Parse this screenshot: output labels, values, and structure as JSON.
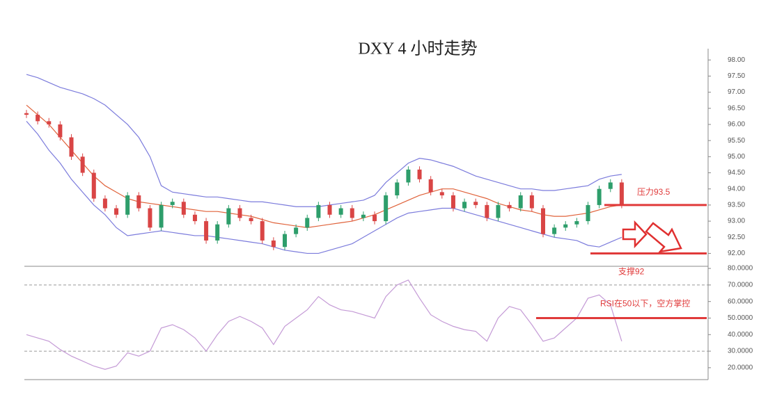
{
  "chart_data": [
    {
      "type": "candlestick",
      "title": "DXY 4 小时走势",
      "up_color": "#2e9e6b",
      "down_color": "#d94545",
      "open": [
        96.35,
        96.3,
        96.1,
        96.0,
        95.6,
        95.0,
        94.5,
        93.7,
        93.4,
        93.2,
        93.8,
        93.4,
        92.8,
        93.5,
        93.6,
        93.2,
        93.0,
        92.4,
        92.9,
        93.4,
        93.1,
        93.0,
        92.4,
        92.2,
        92.6,
        92.8,
        93.1,
        93.5,
        93.2,
        93.4,
        93.1,
        93.2,
        93.0,
        93.8,
        94.2,
        94.6,
        94.3,
        93.9,
        93.8,
        93.4,
        93.6,
        93.5,
        93.1,
        93.5,
        93.4,
        93.8,
        93.4,
        92.6,
        92.8,
        92.9,
        93.0,
        93.5,
        94.0,
        94.2
      ],
      "close": [
        96.3,
        96.1,
        96.0,
        95.6,
        95.0,
        94.5,
        93.7,
        93.4,
        93.2,
        93.8,
        93.4,
        92.8,
        93.5,
        93.6,
        93.2,
        93.0,
        92.4,
        92.9,
        93.4,
        93.1,
        93.0,
        92.4,
        92.2,
        92.6,
        92.8,
        93.1,
        93.5,
        93.2,
        93.4,
        93.1,
        93.2,
        93.0,
        93.8,
        94.2,
        94.6,
        94.3,
        93.9,
        93.8,
        93.4,
        93.6,
        93.5,
        93.1,
        93.5,
        93.4,
        93.8,
        93.4,
        92.6,
        92.8,
        92.9,
        93.0,
        93.5,
        94.0,
        94.2,
        93.5
      ],
      "high": [
        96.45,
        96.4,
        96.2,
        96.1,
        95.7,
        95.1,
        94.6,
        93.8,
        93.5,
        93.9,
        93.9,
        93.5,
        93.6,
        93.7,
        93.7,
        93.3,
        93.1,
        93.0,
        93.5,
        93.5,
        93.2,
        93.1,
        92.5,
        92.7,
        92.9,
        93.2,
        93.6,
        93.6,
        93.5,
        93.5,
        93.3,
        93.3,
        93.9,
        94.3,
        94.7,
        94.7,
        94.4,
        94.0,
        93.9,
        93.7,
        93.7,
        93.6,
        93.6,
        93.6,
        93.9,
        93.9,
        93.5,
        92.9,
        93.0,
        93.1,
        93.6,
        94.1,
        94.3,
        94.3
      ],
      "low": [
        96.2,
        96.0,
        95.9,
        95.5,
        94.9,
        94.4,
        93.6,
        93.3,
        93.1,
        93.1,
        93.3,
        92.7,
        92.7,
        93.4,
        93.1,
        92.9,
        92.3,
        92.3,
        92.8,
        93.0,
        92.9,
        92.3,
        92.1,
        92.1,
        92.5,
        92.7,
        93.0,
        93.1,
        93.1,
        93.0,
        93.0,
        92.9,
        92.9,
        93.7,
        94.1,
        94.2,
        93.8,
        93.7,
        93.3,
        93.3,
        93.4,
        93.0,
        93.0,
        93.3,
        93.3,
        93.3,
        92.5,
        92.5,
        92.7,
        92.8,
        92.9,
        93.4,
        93.9,
        93.4
      ],
      "series": [
        {
          "name": "upper",
          "color": "#7b7bdc",
          "values": [
            97.55,
            97.45,
            97.3,
            97.15,
            97.05,
            96.95,
            96.8,
            96.6,
            96.3,
            96.0,
            95.6,
            95.0,
            94.1,
            93.9,
            93.85,
            93.8,
            93.75,
            93.75,
            93.7,
            93.65,
            93.6,
            93.6,
            93.55,
            93.5,
            93.45,
            93.45,
            93.45,
            93.5,
            93.55,
            93.6,
            93.65,
            93.8,
            94.2,
            94.5,
            94.8,
            94.95,
            94.9,
            94.8,
            94.7,
            94.55,
            94.4,
            94.3,
            94.2,
            94.1,
            94.0,
            94.0,
            93.95,
            93.95,
            94.0,
            94.05,
            94.1,
            94.3,
            94.4,
            94.45
          ]
        },
        {
          "name": "middle",
          "color": "#e0623a",
          "values": [
            96.6,
            96.3,
            96.0,
            95.6,
            95.2,
            94.8,
            94.4,
            94.1,
            93.9,
            93.7,
            93.6,
            93.55,
            93.5,
            93.45,
            93.4,
            93.35,
            93.3,
            93.3,
            93.25,
            93.2,
            93.15,
            93.05,
            92.95,
            92.9,
            92.85,
            92.8,
            92.85,
            92.9,
            92.95,
            93.0,
            93.1,
            93.2,
            93.35,
            93.5,
            93.65,
            93.8,
            93.9,
            94.0,
            94.0,
            93.9,
            93.8,
            93.7,
            93.55,
            93.45,
            93.35,
            93.3,
            93.2,
            93.15,
            93.15,
            93.2,
            93.25,
            93.35,
            93.45,
            93.5
          ]
        },
        {
          "name": "lower",
          "color": "#7b7bdc",
          "values": [
            96.1,
            95.7,
            95.2,
            94.8,
            94.3,
            93.9,
            93.5,
            93.2,
            92.8,
            92.55,
            92.6,
            92.65,
            92.7,
            92.65,
            92.6,
            92.55,
            92.55,
            92.5,
            92.45,
            92.4,
            92.35,
            92.3,
            92.2,
            92.1,
            92.05,
            92.0,
            92.0,
            92.1,
            92.2,
            92.3,
            92.5,
            92.7,
            92.9,
            93.1,
            93.25,
            93.3,
            93.35,
            93.4,
            93.4,
            93.3,
            93.2,
            93.1,
            93.0,
            92.9,
            92.8,
            92.7,
            92.6,
            92.5,
            92.45,
            92.4,
            92.25,
            92.2,
            92.35,
            92.5
          ]
        }
      ],
      "ylim": [
        91.6,
        98.35
      ],
      "yticks": [
        {
          "value": 92,
          "label": "92.00"
        },
        {
          "value": 92.5,
          "label": "92.50"
        },
        {
          "value": 93,
          "label": "93.00"
        },
        {
          "value": 93.5,
          "label": "93.50"
        },
        {
          "value": 94,
          "label": "94.00"
        },
        {
          "value": 94.5,
          "label": "94.50"
        },
        {
          "value": 95,
          "label": "95.00"
        },
        {
          "value": 95.5,
          "label": "95.50"
        },
        {
          "value": 96,
          "label": "96.00"
        },
        {
          "value": 96.5,
          "label": "96.50"
        },
        {
          "value": 97,
          "label": "97.00"
        },
        {
          "value": 97.5,
          "label": "97.50"
        },
        {
          "value": 98,
          "label": "98.00"
        }
      ],
      "annotations": [
        {
          "text": "压力93.5",
          "value": 93.5,
          "color": "#e03a3a"
        },
        {
          "text": "支撑92",
          "value": 92,
          "color": "#e03a3a"
        }
      ]
    },
    {
      "type": "line",
      "series": [
        {
          "name": "RSI",
          "color": "#c49ad6",
          "values": [
            40,
            38,
            36,
            31,
            27,
            24,
            21,
            19,
            21,
            29,
            27,
            30,
            44,
            46,
            43,
            38,
            30,
            40,
            48,
            51,
            48,
            44,
            34,
            45,
            50,
            55,
            63,
            58,
            55,
            54,
            52,
            50,
            63,
            70,
            73,
            62,
            52,
            48,
            45,
            43,
            42,
            36,
            50,
            57,
            55,
            46,
            36,
            38,
            44,
            50,
            62,
            64,
            58,
            36
          ]
        }
      ],
      "ylim": [
        12.8,
        81.3
      ],
      "yticks": [
        {
          "value": 20,
          "label": "20.0000"
        },
        {
          "value": 30,
          "label": "30.0000"
        },
        {
          "value": 40,
          "label": "40.0000"
        },
        {
          "value": 50,
          "label": "50.0000"
        },
        {
          "value": 60,
          "label": "60.0000"
        },
        {
          "value": 70,
          "label": "70.0000"
        },
        {
          "value": 80,
          "label": "80.0000"
        }
      ],
      "hlines": [
        70,
        30
      ],
      "annotations": [
        {
          "text": "RSI在50以下，空方掌控",
          "value": 50,
          "color": "#e03a3a"
        }
      ]
    }
  ]
}
